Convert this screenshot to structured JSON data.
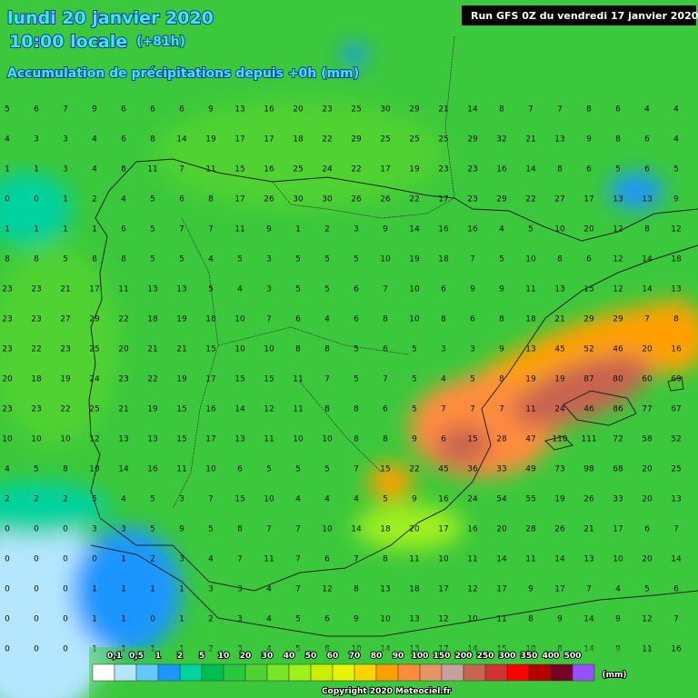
{
  "header": {
    "date": "lundi 20 janvier 2020",
    "time": "10:00 locale",
    "offset": "(+81h)",
    "subtitle": "Accumulation de précipitations depuis +0h (mm)",
    "run": "Run GFS 0Z du vendredi 17 janvier 2020"
  },
  "grid": {
    "rows": [
      [
        5,
        6,
        7,
        9,
        6,
        6,
        6,
        9,
        13,
        16,
        20,
        23,
        25,
        30,
        29,
        21,
        14,
        8,
        7,
        7,
        8,
        6,
        4,
        4
      ],
      [
        4,
        3,
        3,
        4,
        6,
        8,
        14,
        19,
        17,
        17,
        18,
        22,
        29,
        25,
        25,
        25,
        29,
        32,
        21,
        13,
        9,
        8,
        6,
        4
      ],
      [
        1,
        1,
        3,
        4,
        8,
        11,
        7,
        11,
        15,
        16,
        25,
        24,
        22,
        17,
        19,
        23,
        23,
        16,
        14,
        8,
        6,
        5,
        6,
        5
      ],
      [
        0,
        0,
        1,
        2,
        4,
        5,
        6,
        8,
        17,
        26,
        30,
        30,
        26,
        26,
        22,
        17,
        23,
        29,
        22,
        27,
        17,
        13,
        13,
        9
      ],
      [
        1,
        1,
        1,
        1,
        6,
        5,
        7,
        7,
        11,
        9,
        1,
        2,
        3,
        9,
        14,
        16,
        16,
        4,
        5,
        10,
        20,
        12,
        8,
        12
      ],
      [
        8,
        8,
        5,
        8,
        8,
        5,
        5,
        4,
        5,
        3,
        5,
        5,
        5,
        10,
        19,
        18,
        7,
        5,
        10,
        8,
        6,
        12,
        14,
        18
      ],
      [
        23,
        23,
        21,
        17,
        11,
        13,
        13,
        5,
        4,
        3,
        5,
        5,
        6,
        7,
        10,
        6,
        9,
        9,
        11,
        13,
        15,
        12,
        14,
        13
      ],
      [
        23,
        23,
        27,
        29,
        22,
        18,
        19,
        18,
        10,
        7,
        6,
        4,
        6,
        8,
        10,
        8,
        6,
        8,
        18,
        21,
        29,
        29,
        7,
        8
      ],
      [
        23,
        22,
        23,
        25,
        20,
        21,
        21,
        15,
        10,
        10,
        8,
        8,
        5,
        6,
        5,
        3,
        3,
        9,
        13,
        45,
        52,
        46,
        20,
        16
      ],
      [
        20,
        18,
        19,
        24,
        23,
        22,
        19,
        17,
        15,
        15,
        11,
        7,
        5,
        7,
        5,
        4,
        5,
        8,
        19,
        19,
        87,
        80,
        60,
        69
      ],
      [
        23,
        23,
        22,
        25,
        21,
        19,
        15,
        16,
        14,
        12,
        11,
        8,
        8,
        6,
        5,
        7,
        7,
        7,
        11,
        24,
        46,
        86,
        77,
        67
      ],
      [
        10,
        10,
        10,
        12,
        13,
        13,
        15,
        17,
        13,
        11,
        10,
        10,
        8,
        8,
        9,
        6,
        15,
        28,
        47,
        110,
        111,
        72,
        58,
        52
      ],
      [
        4,
        5,
        8,
        10,
        14,
        16,
        11,
        10,
        6,
        5,
        5,
        5,
        7,
        15,
        22,
        45,
        36,
        33,
        49,
        73,
        98,
        68,
        20,
        25
      ],
      [
        2,
        2,
        2,
        5,
        4,
        5,
        3,
        7,
        15,
        10,
        4,
        4,
        4,
        5,
        9,
        16,
        24,
        54,
        55,
        19,
        26,
        33,
        20,
        13
      ],
      [
        0,
        0,
        0,
        3,
        3,
        5,
        9,
        5,
        8,
        7,
        7,
        10,
        14,
        18,
        20,
        17,
        16,
        20,
        28,
        26,
        21,
        17,
        6,
        7
      ],
      [
        0,
        0,
        0,
        0,
        1,
        2,
        3,
        4,
        7,
        11,
        7,
        6,
        7,
        8,
        11,
        10,
        11,
        14,
        11,
        14,
        13,
        10,
        20,
        14
      ],
      [
        0,
        0,
        0,
        1,
        1,
        1,
        1,
        3,
        3,
        4,
        7,
        12,
        8,
        13,
        18,
        17,
        12,
        17,
        9,
        17,
        7,
        4,
        5,
        6
      ],
      [
        0,
        0,
        0,
        1,
        1,
        0,
        1,
        2,
        3,
        4,
        5,
        6,
        9,
        10,
        13,
        12,
        10,
        11,
        8,
        9,
        14,
        9,
        12,
        7
      ],
      [
        0,
        0,
        0,
        1,
        1,
        1,
        1,
        2,
        3,
        4,
        5,
        8,
        10,
        14,
        13,
        17,
        14,
        15,
        10,
        8,
        14,
        9,
        11,
        16
      ]
    ]
  },
  "legend": {
    "labels": [
      "0,1",
      "0,5",
      "1",
      "2",
      "5",
      "10",
      "20",
      "30",
      "40",
      "50",
      "60",
      "70",
      "80",
      "90",
      "100",
      "150",
      "200",
      "250",
      "300",
      "350",
      "400",
      "500"
    ],
    "colors": [
      "#ffffff",
      "#b4e6ff",
      "#64c8ff",
      "#1e96ff",
      "#00d2a0",
      "#00be50",
      "#28c83c",
      "#50d232",
      "#78e628",
      "#a0f01e",
      "#c8f000",
      "#e6f500",
      "#ffd200",
      "#ffa000",
      "#ff8c3c",
      "#e69664",
      "#c8a0a0",
      "#c86450",
      "#d23232",
      "#ff0000",
      "#b40000",
      "#780028",
      "#9650ff"
    ],
    "unit": "(mm)"
  },
  "footer": {
    "copyright": "Copyright 2020 Meteociel.fr"
  }
}
